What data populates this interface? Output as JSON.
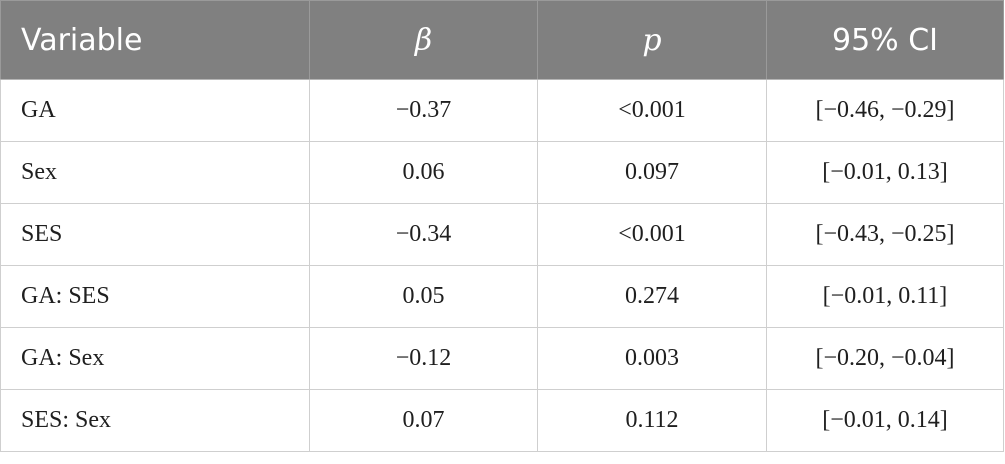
{
  "table": {
    "headers": [
      "Variable",
      "β",
      "p",
      "95% CI"
    ],
    "rows": [
      [
        "GA",
        "−0.37",
        "<0.001",
        "[−0.46, −0.29]"
      ],
      [
        "Sex",
        "0.06",
        "0.097",
        "[−0.01, 0.13]"
      ],
      [
        "SES",
        "−0.34",
        "<0.001",
        "[−0.43, −0.25]"
      ],
      [
        "GA: SES",
        "0.05",
        "0.274",
        "[−0.01, 0.11]"
      ],
      [
        "GA: Sex",
        "−0.12",
        "0.003",
        "[−0.20, −0.04]"
      ],
      [
        "SES: Sex",
        "0.07",
        "0.112",
        "[−0.01, 0.14]"
      ]
    ]
  },
  "colors": {
    "header_bg": "#808080",
    "header_text": "#ffffff",
    "cell_text": "#1f1f1f",
    "border": "#cfcfcf"
  }
}
